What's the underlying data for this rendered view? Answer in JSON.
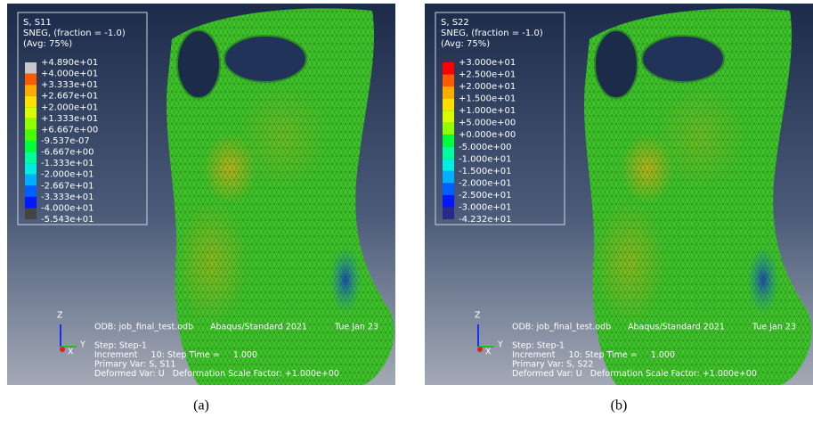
{
  "panels": [
    {
      "legend": {
        "title_lines": [
          "S, S11",
          "SNEG, (fraction = -1.0)",
          "(Avg: 75%)"
        ],
        "values": [
          "+4.890e+01",
          "+4.000e+01",
          "+3.333e+01",
          "+2.667e+01",
          "+2.000e+01",
          "+1.333e+01",
          "+6.667e+00",
          "-9.537e-07",
          "-6.667e+00",
          "-1.333e+01",
          "-2.000e+01",
          "-2.667e+01",
          "-3.333e+01",
          "-4.000e+01",
          "-5.543e+01"
        ]
      },
      "info": {
        "odb": "ODB: job_final_test.odb",
        "version": "Abaqus/Standard 2021",
        "date": "Tue Jan 23",
        "lines": [
          "Step: Step-1",
          "Increment     10: Step Time =     1.000",
          "Primary Var: S, S11",
          "Deformed Var: U   Deformation Scale Factor: +1.000e+00"
        ]
      },
      "triad": {
        "z": "Z",
        "y": "Y",
        "x": "X"
      },
      "caption": "(a)"
    },
    {
      "legend": {
        "title_lines": [
          "S, S22",
          "SNEG, (fraction = -1.0)",
          "(Avg: 75%)"
        ],
        "values": [
          "+3.000e+01",
          "+2.500e+01",
          "+2.000e+01",
          "+1.500e+01",
          "+1.000e+01",
          "+5.000e+00",
          "+0.000e+00",
          "-5.000e+00",
          "-1.000e+01",
          "-1.500e+01",
          "-2.000e+01",
          "-2.500e+01",
          "-3.000e+01",
          "-4.232e+01"
        ]
      },
      "info": {
        "odb": "ODB: job_final_test.odb",
        "version": "Abaqus/Standard 2021",
        "date": "Tue Jan 23",
        "lines": [
          "Step: Step-1",
          "Increment     10: Step Time =     1.000",
          "Primary Var: S, S22",
          "Deformed Var: U   Deformation Scale Factor: +1.000e+00"
        ]
      },
      "triad": {
        "z": "Z",
        "y": "Y",
        "x": "X"
      },
      "caption": "(b)"
    }
  ]
}
